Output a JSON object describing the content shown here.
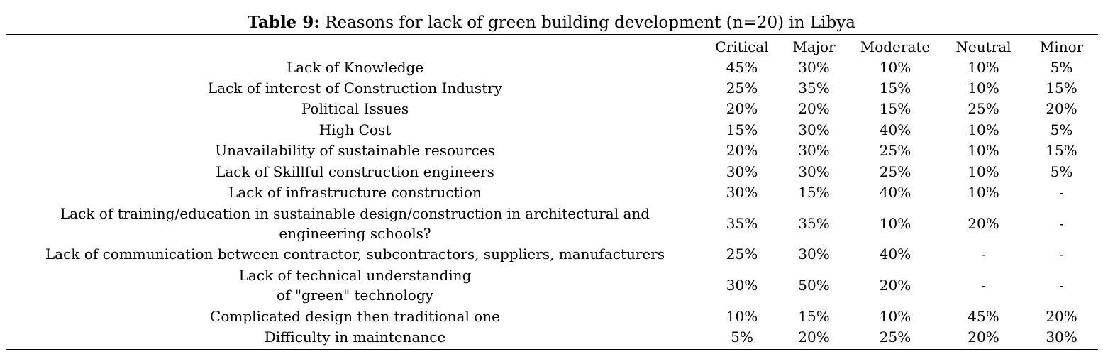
{
  "caption": {
    "label": "Table 9:",
    "text": "Reasons for lack of green building development (n=20) in Libya"
  },
  "columns": [
    "Critical",
    "Major",
    "Moderate",
    "Neutral",
    "Minor"
  ],
  "rows": [
    {
      "reason": [
        "Lack of Knowledge"
      ],
      "values": [
        "45%",
        "30%",
        "10%",
        "10%",
        "5%"
      ]
    },
    {
      "reason": [
        "Lack of interest of Construction Industry"
      ],
      "values": [
        "25%",
        "35%",
        "15%",
        "10%",
        "15%"
      ]
    },
    {
      "reason": [
        "Political Issues"
      ],
      "values": [
        "20%",
        "20%",
        "15%",
        "25%",
        "20%"
      ]
    },
    {
      "reason": [
        "High Cost"
      ],
      "values": [
        "15%",
        "30%",
        "40%",
        "10%",
        "5%"
      ]
    },
    {
      "reason": [
        "Unavailability of sustainable resources"
      ],
      "values": [
        "20%",
        "30%",
        "25%",
        "10%",
        "15%"
      ]
    },
    {
      "reason": [
        "Lack of Skillful  construction engineers"
      ],
      "values": [
        "30%",
        "30%",
        "25%",
        "10%",
        "5%"
      ]
    },
    {
      "reason": [
        "Lack of infrastructure construction"
      ],
      "values": [
        "30%",
        "15%",
        "40%",
        "10%",
        "-"
      ]
    },
    {
      "reason": [
        "Lack of training/education in sustainable design/construction in architectural and",
        "engineering schools?"
      ],
      "values": [
        "35%",
        "35%",
        "10%",
        "20%",
        "-"
      ]
    },
    {
      "reason": [
        "Lack of communication between contractor, subcontractors, suppliers, manufacturers"
      ],
      "values": [
        "25%",
        "30%",
        "40%",
        "-",
        "-"
      ]
    },
    {
      "reason": [
        "Lack of technical understanding",
        "of \"green\" technology"
      ],
      "values": [
        "30%",
        "50%",
        "20%",
        "-",
        "-"
      ]
    },
    {
      "reason": [
        "Complicated design then traditional one"
      ],
      "values": [
        "10%",
        "15%",
        "10%",
        "45%",
        "20%"
      ]
    },
    {
      "reason": [
        "Difficulty in maintenance"
      ],
      "values": [
        "5%",
        "20%",
        "25%",
        "20%",
        "30%"
      ]
    }
  ]
}
